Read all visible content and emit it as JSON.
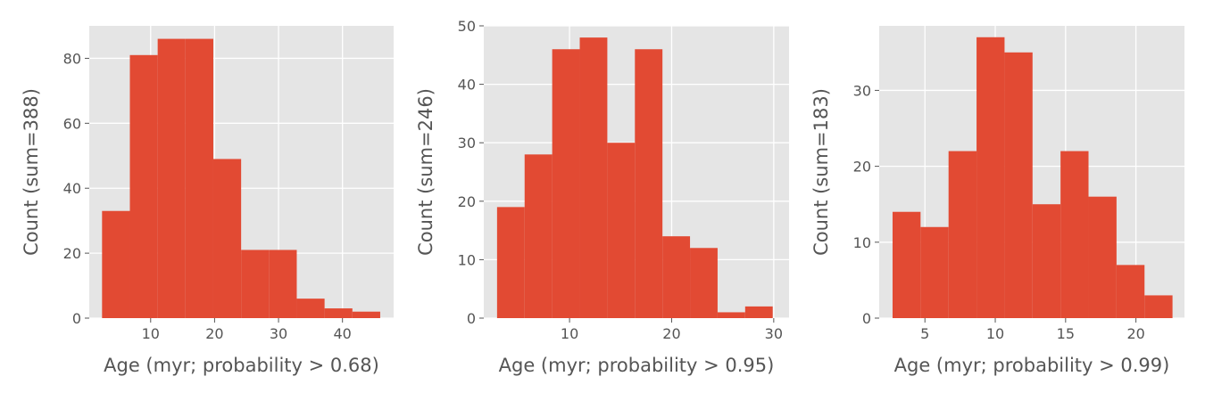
{
  "chart_data": [
    {
      "type": "bar",
      "style": "histogram",
      "xlabel": "Age (myr; probability > 0.68)",
      "ylabel": "Count (sum=388)",
      "grid": true,
      "xlim": [
        0.4,
        48.0
      ],
      "ylim": [
        0,
        90
      ],
      "xticks": [
        10,
        20,
        30,
        40
      ],
      "yticks": [
        0,
        20,
        40,
        60,
        80
      ],
      "bin_edges": [
        2.4,
        6.75,
        11.1,
        15.45,
        19.8,
        24.15,
        28.5,
        32.85,
        37.2,
        41.55,
        45.9
      ],
      "values": [
        33,
        81,
        86,
        86,
        49,
        21,
        21,
        6,
        3,
        2
      ],
      "bar_color": "#E24A33"
    },
    {
      "type": "bar",
      "style": "histogram",
      "xlabel": "Age (myr; probability > 0.95)",
      "ylabel": "Count (sum=246)",
      "grid": true,
      "xlim": [
        1.6,
        31.5
      ],
      "ylim": [
        0,
        50
      ],
      "xticks": [
        10,
        20,
        30
      ],
      "yticks": [
        0,
        10,
        20,
        30,
        40,
        50
      ],
      "bin_edges": [
        2.9,
        5.6,
        8.3,
        11.0,
        13.7,
        16.4,
        19.1,
        21.8,
        24.5,
        27.2,
        29.9
      ],
      "values": [
        19,
        28,
        46,
        48,
        30,
        46,
        14,
        12,
        1,
        2
      ],
      "bar_color": "#E24A33"
    },
    {
      "type": "bar",
      "style": "histogram",
      "xlabel": "Age (myr; probability > 0.99)",
      "ylabel": "Count (sum=183)",
      "grid": true,
      "xlim": [
        1.75,
        23.45
      ],
      "ylim": [
        0,
        38.5
      ],
      "xticks": [
        5,
        10,
        15,
        20
      ],
      "yticks": [
        0,
        10,
        20,
        30
      ],
      "bin_edges": [
        2.7,
        4.69,
        6.68,
        8.67,
        10.66,
        12.65,
        14.64,
        16.63,
        18.62,
        20.61,
        22.6
      ],
      "values": [
        14,
        12,
        22,
        37,
        35,
        15,
        22,
        16,
        7,
        3
      ],
      "bar_color": "#E24A33"
    }
  ]
}
